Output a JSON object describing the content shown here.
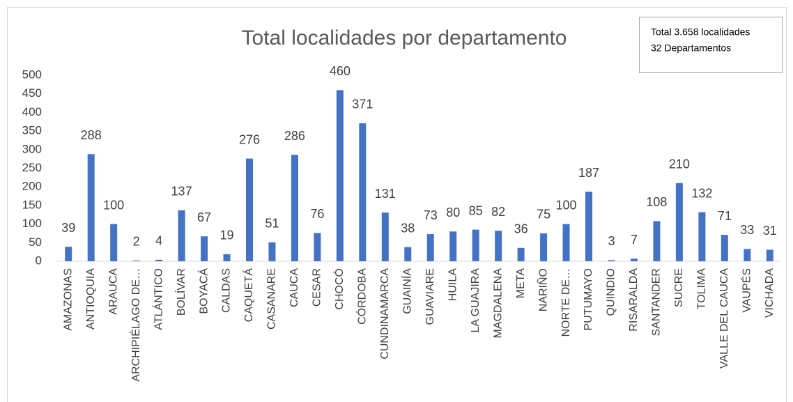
{
  "chart_data": {
    "type": "bar",
    "title": "Total localidades por departamento",
    "categories": [
      "AMAZONAS",
      "ANTIOQUIA",
      "ARAUCA",
      "ARCHIPIÉLAGO DE…",
      "ATLÁNTICO",
      "BOLÍVAR",
      "BOYACÁ",
      "CALDAS",
      "CAQUETÁ",
      "CASANARE",
      "CAUCA",
      "CESAR",
      "CHOCÓ",
      "CÓRDOBA",
      "CUNDINAMARCA",
      "GUAINÍA",
      "GUAVIARE",
      "HUILA",
      "LA GUAJIRA",
      "MAGDALENA",
      "META",
      "NARIÑO",
      "NORTE DE…",
      "PUTUMAYO",
      "QUINDIO",
      "RISARALDA",
      "SANTANDER",
      "SUCRE",
      "TOLIMA",
      "VALLE DEL CAUCA",
      "VAUPÉS",
      "VICHADA"
    ],
    "values": [
      39,
      288,
      100,
      2,
      4,
      137,
      67,
      19,
      276,
      51,
      286,
      76,
      460,
      371,
      131,
      38,
      73,
      80,
      85,
      82,
      36,
      75,
      100,
      187,
      3,
      7,
      108,
      210,
      132,
      71,
      33,
      31
    ],
    "color": "#4472c4",
    "ylim": [
      0,
      500
    ],
    "yticks": [
      0,
      50,
      100,
      150,
      200,
      250,
      300,
      350,
      400,
      450,
      500
    ],
    "grid": false,
    "annotations": [
      "Total 3.658 localidades",
      "32 Departamentos"
    ]
  }
}
